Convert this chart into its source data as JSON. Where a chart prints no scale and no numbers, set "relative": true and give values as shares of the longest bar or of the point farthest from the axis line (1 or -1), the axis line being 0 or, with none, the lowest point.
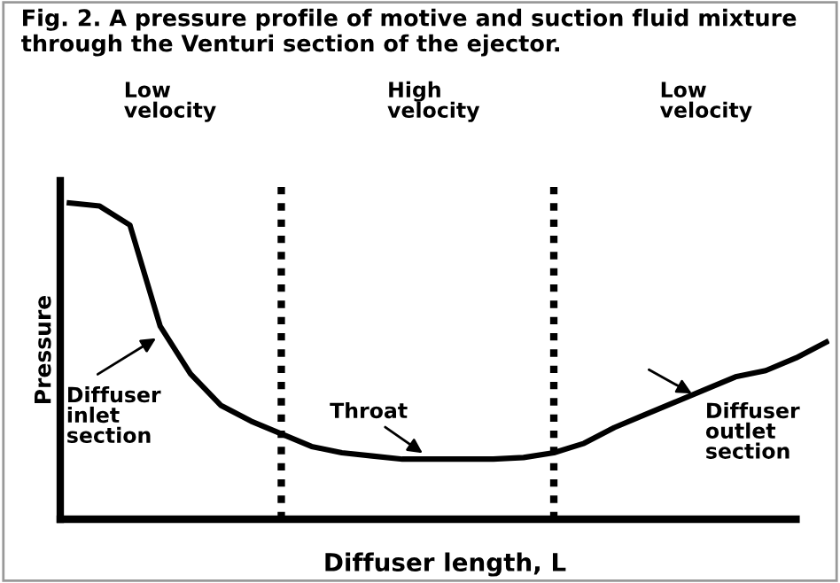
{
  "chart_data": {
    "type": "line",
    "title": "Fig. 2. A pressure profile of motive and suction fluid mixture through the Venturi section of the ejector.",
    "xlabel": "Diffuser length, L",
    "ylabel": "Pressure",
    "relative": true,
    "grid": false,
    "legend": false,
    "marker": "none",
    "line_style": "solid",
    "categories": [
      null,
      null,
      null,
      null,
      null,
      null,
      null,
      null,
      null,
      null,
      null,
      null,
      null,
      null,
      null,
      null,
      null,
      null,
      null,
      null,
      null,
      null,
      null,
      null,
      null,
      null
    ],
    "series": [
      {
        "color": "#000000",
        "values": [
          1.0,
          0.99,
          0.93,
          0.61,
          0.46,
          0.36,
          0.31,
          0.27,
          0.23,
          0.21,
          0.2,
          0.19,
          0.19,
          0.19,
          0.19,
          0.195,
          0.21,
          0.24,
          0.29,
          0.33,
          0.37,
          0.41,
          0.45,
          0.47,
          0.51,
          0.56
        ]
      }
    ],
    "annotations": [
      "Low\nvelocity",
      "High\nvelocity",
      "Low\nvelocity",
      "Diffuser\ninlet\nsection",
      "Throat",
      "Diffuser\noutlet\nsection"
    ]
  }
}
